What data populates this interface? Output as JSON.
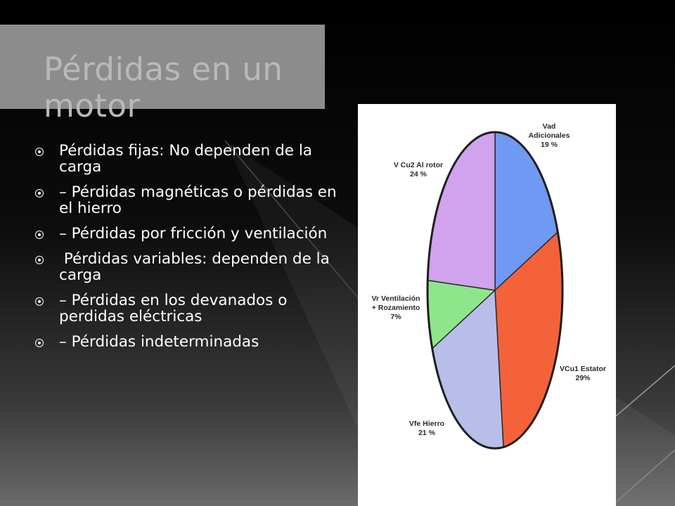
{
  "slide": {
    "title": "Pérdidas en un motor",
    "bullets": [
      "Pérdidas fijas: No dependen de la carga",
      "– Pérdidas magnéticas o pérdidas en el hierro",
      "– Pérdidas por fricción y ventilación",
      " Pérdidas variables: dependen de la carga",
      "– Pérdidas en los devanados o perdidas eléctricas",
      "– Pérdidas indeterminadas"
    ]
  },
  "chart_data": {
    "type": "pie",
    "title": "",
    "slices": [
      {
        "name": "Vad Adicionales",
        "value": 19,
        "color": "#6f99f2",
        "label_lines": [
          "Vad",
          "Adicionales",
          "19 %"
        ]
      },
      {
        "name": "VCu1 Estator",
        "value": 29,
        "color": "#f4623a",
        "label_lines": [
          "VCu1 Estator",
          "29%"
        ]
      },
      {
        "name": "Vfe Hierro",
        "value": 21,
        "color": "#b8bee8",
        "label_lines": [
          "Vfe Hierro",
          "21 %"
        ]
      },
      {
        "name": "Vr Ventilación + Rozamiento",
        "value": 7,
        "color": "#8ee68b",
        "label_lines": [
          "Vr Ventilación",
          "+ Rozamiento",
          "7%"
        ]
      },
      {
        "name": "V Cu2 Al rotor",
        "value": 24,
        "color": "#d1a2ee",
        "label_lines": [
          "V Cu2 Al rotor",
          "24 %"
        ]
      }
    ],
    "start_angle_deg": 0,
    "direction": "clockwise"
  }
}
